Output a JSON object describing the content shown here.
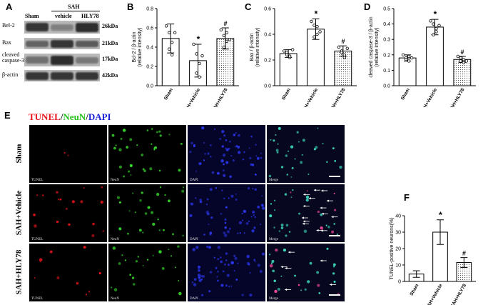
{
  "panels": {
    "A": "A",
    "B": "B",
    "C": "C",
    "D": "D",
    "E": "E",
    "F": "F"
  },
  "western_blot": {
    "group_header": "SAH",
    "columns": [
      "Sham",
      "vehicle",
      "HLY78"
    ],
    "rows": [
      {
        "label": "Bel-2",
        "kda": "26kDa",
        "intensity": [
          0.85,
          0.35,
          0.9
        ]
      },
      {
        "label": "Bax",
        "kda": "21kDa",
        "intensity": [
          0.55,
          0.85,
          0.6
        ]
      },
      {
        "label": "cleaved\ncaspase-3",
        "kda": "17kDa",
        "intensity": [
          0.45,
          0.9,
          0.4
        ]
      },
      {
        "label": "β-actin",
        "kda": "42kDa",
        "intensity": [
          0.85,
          0.85,
          0.85
        ]
      }
    ]
  },
  "if_panel": {
    "title_parts": [
      {
        "text": "TUNEL",
        "color": "#e8141c"
      },
      {
        "text": "/",
        "color": "#222222"
      },
      {
        "text": "NeuN",
        "color": "#27c21f"
      },
      {
        "text": "/",
        "color": "#222222"
      },
      {
        "text": "DAPI",
        "color": "#1b22d6"
      }
    ],
    "rows": [
      "Sham",
      "SAH+Vehicle",
      "SAH+HLY78"
    ],
    "channels": [
      "TUNEL",
      "NeuN",
      "DAPI",
      "Merge"
    ]
  },
  "chart_data": [
    {
      "panel": "B",
      "type": "bar",
      "categories": [
        "Sham",
        "SAH+Vehicle",
        "SAH+HLY78"
      ],
      "values": [
        0.49,
        0.26,
        0.49
      ],
      "errors": [
        0.15,
        0.17,
        0.11
      ],
      "points": [
        [
          0.62,
          0.55,
          0.45,
          0.38,
          0.32,
          0.55
        ],
        [
          0.43,
          0.33,
          0.23,
          0.13,
          0.09,
          0.31
        ],
        [
          0.58,
          0.52,
          0.46,
          0.4,
          0.55,
          0.48
        ]
      ],
      "annotations": [
        "",
        "*",
        "#"
      ],
      "ylabel": "Bcl-2 / β-actin\n(relative intensity)",
      "ylim": [
        0,
        0.8
      ],
      "yticks": [
        "0.0",
        "0.2",
        "0.4",
        "0.6",
        "0.8"
      ],
      "fills": [
        "white",
        "black",
        "dots"
      ]
    },
    {
      "panel": "C",
      "type": "bar",
      "categories": [
        "Sham",
        "SAH+Vehicle",
        "SAH+HLY78"
      ],
      "values": [
        0.25,
        0.44,
        0.27
      ],
      "errors": [
        0.03,
        0.08,
        0.04
      ],
      "points": [
        [
          0.27,
          0.24,
          0.22,
          0.26,
          0.23,
          0.28
        ],
        [
          0.5,
          0.47,
          0.4,
          0.38,
          0.46,
          0.42
        ],
        [
          0.3,
          0.27,
          0.24,
          0.26,
          0.22,
          0.29
        ]
      ],
      "annotations": [
        "",
        "*",
        "#"
      ],
      "ylabel": "Bax / β-actin\n(relative intensity)",
      "ylim": [
        0,
        0.6
      ],
      "yticks": [
        "0.0",
        "0.2",
        "0.4",
        "0.6"
      ],
      "fills": [
        "white",
        "black",
        "dots"
      ]
    },
    {
      "panel": "D",
      "type": "bar",
      "categories": [
        "Sham",
        "SAH+Vehicle",
        "SAH+HLY78"
      ],
      "values": [
        0.18,
        0.38,
        0.17
      ],
      "errors": [
        0.02,
        0.05,
        0.02
      ],
      "points": [
        [
          0.2,
          0.18,
          0.16,
          0.17,
          0.19,
          0.18
        ],
        [
          0.42,
          0.4,
          0.35,
          0.33,
          0.37,
          0.39
        ],
        [
          0.19,
          0.16,
          0.15,
          0.18,
          0.17,
          0.16
        ]
      ],
      "annotations": [
        "",
        "*",
        "#"
      ],
      "ylabel": "cleaved caspase-3 / β-actin\n(relative intensity)",
      "ylim": [
        0,
        0.5
      ],
      "yticks": [
        "0.0",
        "0.1",
        "0.2",
        "0.3",
        "0.4",
        "0.5"
      ],
      "fills": [
        "white",
        "black",
        "dots"
      ]
    },
    {
      "panel": "F",
      "type": "bar",
      "categories": [
        "Sham",
        "SAH+Vehicle",
        "SAH+HLY78"
      ],
      "values": [
        4.5,
        30.0,
        11.5
      ],
      "errors": [
        2.0,
        7.5,
        3.0
      ],
      "points": [
        [],
        [],
        []
      ],
      "annotations": [
        "",
        "*",
        "#"
      ],
      "ylabel": "TUNEL-positive neurons(%)",
      "ylim": [
        0,
        40
      ],
      "yticks": [
        "0",
        "10",
        "20",
        "30",
        "40"
      ],
      "fills": [
        "white",
        "black",
        "dots"
      ]
    }
  ]
}
